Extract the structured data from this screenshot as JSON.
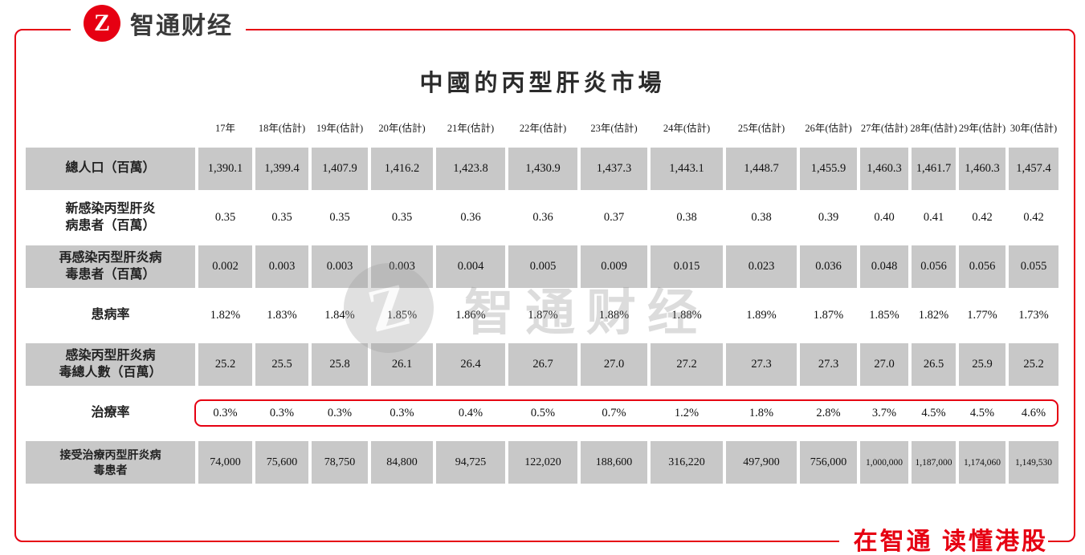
{
  "brand": {
    "logo_text": "智通财经",
    "logo_monogram": "Z",
    "accent_color": "#e60012",
    "footer_slogan": "在智通 读懂港股"
  },
  "watermark": {
    "monogram": "Z",
    "text": "智通财经"
  },
  "chart_data": {
    "type": "table",
    "title": "中國的丙型肝炎市場",
    "columns": [
      "",
      "17年",
      "18年(估計)",
      "19年(估計)",
      "20年(估計)",
      "21年(估計)",
      "22年(估計)",
      "23年(估計)",
      "24年(估計)",
      "25年(估計)",
      "26年(估計)",
      "27年(估計)",
      "28年(估計)",
      "29年(估計)",
      "30年(估計)"
    ],
    "rows": [
      {
        "label": "總人口（百萬）",
        "shaded": true,
        "highlighted": false,
        "values": [
          "1,390.1",
          "1,399.4",
          "1,407.9",
          "1,416.2",
          "1,423.8",
          "1,430.9",
          "1,437.3",
          "1,443.1",
          "1,448.7",
          "1,455.9",
          "1,460.3",
          "1,461.7",
          "1,460.3",
          "1,457.4"
        ]
      },
      {
        "label": "新感染丙型肝炎\n病患者（百萬）",
        "shaded": false,
        "highlighted": false,
        "values": [
          "0.35",
          "0.35",
          "0.35",
          "0.35",
          "0.36",
          "0.36",
          "0.37",
          "0.38",
          "0.38",
          "0.39",
          "0.40",
          "0.41",
          "0.42",
          "0.42"
        ]
      },
      {
        "label": "再感染丙型肝炎病\n毒患者（百萬）",
        "shaded": true,
        "highlighted": false,
        "values": [
          "0.002",
          "0.003",
          "0.003",
          "0.003",
          "0.004",
          "0.005",
          "0.009",
          "0.015",
          "0.023",
          "0.036",
          "0.048",
          "0.056",
          "0.056",
          "0.055"
        ]
      },
      {
        "label": "患病率",
        "shaded": false,
        "highlighted": false,
        "values": [
          "1.82%",
          "1.83%",
          "1.84%",
          "1.85%",
          "1.86%",
          "1.87%",
          "1.88%",
          "1.88%",
          "1.89%",
          "1.87%",
          "1.85%",
          "1.82%",
          "1.77%",
          "1.73%"
        ]
      },
      {
        "label": "感染丙型肝炎病\n毒總人數（百萬）",
        "shaded": true,
        "highlighted": false,
        "values": [
          "25.2",
          "25.5",
          "25.8",
          "26.1",
          "26.4",
          "26.7",
          "27.0",
          "27.2",
          "27.3",
          "27.3",
          "27.0",
          "26.5",
          "25.9",
          "25.2"
        ]
      },
      {
        "label": "治療率",
        "shaded": false,
        "highlighted": true,
        "values": [
          "0.3%",
          "0.3%",
          "0.3%",
          "0.3%",
          "0.4%",
          "0.5%",
          "0.7%",
          "1.2%",
          "1.8%",
          "2.8%",
          "3.7%",
          "4.5%",
          "4.5%",
          "4.6%"
        ]
      },
      {
        "label": "接受治療丙型肝炎病\n毒患者",
        "shaded": true,
        "highlighted": false,
        "values": [
          "74,000",
          "75,600",
          "78,750",
          "84,800",
          "94,725",
          "122,020",
          "188,600",
          "316,220",
          "497,900",
          "756,000",
          "1,000,000",
          "1,187,000",
          "1,174,060",
          "1,149,530"
        ]
      }
    ],
    "highlight_note": "治療率 row values enclosed in red rounded box"
  }
}
